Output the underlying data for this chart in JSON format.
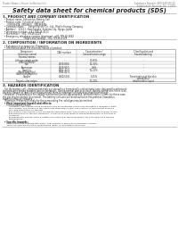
{
  "bg_color": "#ffffff",
  "header_top_left": "Product Name: Lithium Ion Battery Cell",
  "header_top_right_1": "Substance Number: SDS-049-009-10",
  "header_top_right_2": "Established / Revision: Dec.7.2010",
  "title": "Safety data sheet for chemical products (SDS)",
  "section1_header": "1. PRODUCT AND COMPANY IDENTIFICATION",
  "section1_lines": [
    "  • Product name: Lithium Ion Battery Cell",
    "  • Product code: Cylindrical-type cell",
    "       (UR18650A, UR18650L, UR18650A)",
    "  • Company name:      Sanyo Electric Co., Ltd., Mobile Energy Company",
    "  • Address:    2222-1  Kamikosaka, Sumoto-City, Hyogo, Japan",
    "  • Telephone number:  +81-799-26-4111",
    "  • Fax number:  +81-799-26-4129",
    "  • Emergency telephone number (daytimes): +81-799-26-3662",
    "                                (Night and holiday): +81-799-26-4129"
  ],
  "section2_header": "2. COMPOSITION / INFORMATION ON INGREDIENTS",
  "section2_line1": "  • Substance or preparation: Preparation",
  "section2_line2": "  • Information about the chemical nature of product:",
  "col_headers": [
    "Component\n(chemical name)",
    "CAS number",
    "Concentration /\nConcentration range",
    "Classification and\nhazard labeling"
  ],
  "col_subheader": "Several names",
  "table_data": [
    [
      "Lithium cobalt oxide\n(LiMn/Co/PbO4)",
      "-",
      "30-60%",
      "-"
    ],
    [
      "Iron",
      "7439-89-6",
      "10-30%",
      "-"
    ],
    [
      "Aluminum",
      "7429-90-5",
      "2-6%",
      "-"
    ],
    [
      "Graphite\n(Meso graphite)\n(Artificial graphite)",
      "7782-42-5\n7782-42-5",
      "10-25%",
      "-"
    ],
    [
      "Copper",
      "7440-50-8",
      "5-15%",
      "Sensitization of the skin\ngroup No.2"
    ],
    [
      "Organic electrolyte",
      "-",
      "10-20%",
      "Inflammable liquid"
    ]
  ],
  "section3_header": "3. HAZARDS IDENTIFICATION",
  "section3_para1": "   For the battery cell, chemical materials are stored in a hermetically sealed metal case, designed to withstand\ntemperatures during portable-device operations. During normal use, as a result, during normal use, there is no\nphysical danger of ignition or explosion and there is no danger of hazardous materials leakage.\n   However, if exposed to a fire, added mechanical shocks, decomposed, emitted electric stress, try these case,\nthe gas maybe vented (or ejected). The battery cell case will be breached at fire-preheat. Hazardous\nmaterials may be released.\n   Moreover, if heated strongly by the surrounding fire, solid gas may be emitted.",
  "section3_bullet1": "  • Most important hazard and effects:",
  "section3_human": "      Human health effects:",
  "section3_human_lines": [
    "         Inhalation: The release of the electrolyte has an anesthesia action and stimulates a respiratory tract.",
    "         Skin contact: The release of the electrolyte stimulates a skin. The electrolyte skin contact causes a",
    "         sore and stimulation on the skin.",
    "         Eye contact: The release of the electrolyte stimulates eyes. The electrolyte eye contact causes a sore",
    "         and stimulation on the eye. Especially, a substance that causes a strong inflammation of the eyes is",
    "         contained.",
    "         Environmental effects: Since a battery cell remains in the environment, do not throw out it into the",
    "         environment."
  ],
  "section3_bullet2": "  • Specific hazards:",
  "section3_specific_lines": [
    "      If the electrolyte contacts with water, it will generate detrimental hydrogen fluoride.",
    "      Since the used electrolyte is inflammable liquid, do not bring close to fire."
  ],
  "text_color": "#222222",
  "light_text": "#555555",
  "line_color": "#999999",
  "title_fontsize": 4.8,
  "header_fontsize": 2.8,
  "body_fontsize": 2.0,
  "small_fontsize": 1.85
}
